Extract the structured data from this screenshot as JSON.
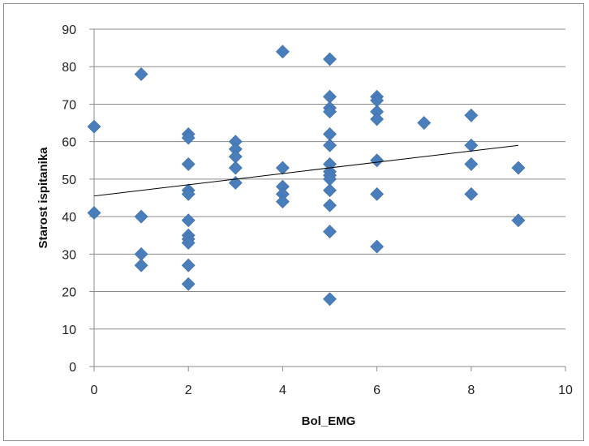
{
  "chart_data": {
    "type": "scatter",
    "title": "",
    "xlabel": "Bol_EMG",
    "ylabel": "Starost ispitanika",
    "xlim": [
      0,
      10
    ],
    "ylim": [
      0,
      90
    ],
    "xticks": [
      0,
      2,
      4,
      6,
      8,
      10
    ],
    "yticks": [
      0,
      10,
      20,
      30,
      40,
      50,
      60,
      70,
      80,
      90
    ],
    "grid": "horizontal",
    "legend": "none",
    "marker": "diamond",
    "marker_color": "#4a7ebb",
    "trendline": {
      "type": "linear",
      "x": [
        0,
        9
      ],
      "y": [
        45.5,
        59
      ]
    },
    "points": [
      {
        "x": 0,
        "y": 64
      },
      {
        "x": 0,
        "y": 41
      },
      {
        "x": 1,
        "y": 78
      },
      {
        "x": 1,
        "y": 40
      },
      {
        "x": 1,
        "y": 30
      },
      {
        "x": 1,
        "y": 27
      },
      {
        "x": 2,
        "y": 62
      },
      {
        "x": 2,
        "y": 61
      },
      {
        "x": 2,
        "y": 54
      },
      {
        "x": 2,
        "y": 47
      },
      {
        "x": 2,
        "y": 46
      },
      {
        "x": 2,
        "y": 39
      },
      {
        "x": 2,
        "y": 35
      },
      {
        "x": 2,
        "y": 34
      },
      {
        "x": 2,
        "y": 33
      },
      {
        "x": 2,
        "y": 27
      },
      {
        "x": 2,
        "y": 22
      },
      {
        "x": 3,
        "y": 60
      },
      {
        "x": 3,
        "y": 58
      },
      {
        "x": 3,
        "y": 56
      },
      {
        "x": 3,
        "y": 53
      },
      {
        "x": 3,
        "y": 49
      },
      {
        "x": 4,
        "y": 84
      },
      {
        "x": 4,
        "y": 53
      },
      {
        "x": 4,
        "y": 48
      },
      {
        "x": 4,
        "y": 46
      },
      {
        "x": 4,
        "y": 44
      },
      {
        "x": 5,
        "y": 82
      },
      {
        "x": 5,
        "y": 72
      },
      {
        "x": 5,
        "y": 69
      },
      {
        "x": 5,
        "y": 68
      },
      {
        "x": 5,
        "y": 62
      },
      {
        "x": 5,
        "y": 59
      },
      {
        "x": 5,
        "y": 54
      },
      {
        "x": 5,
        "y": 52
      },
      {
        "x": 5,
        "y": 51
      },
      {
        "x": 5,
        "y": 50
      },
      {
        "x": 5,
        "y": 47
      },
      {
        "x": 5,
        "y": 43
      },
      {
        "x": 5,
        "y": 36
      },
      {
        "x": 5,
        "y": 18
      },
      {
        "x": 6,
        "y": 72
      },
      {
        "x": 6,
        "y": 71
      },
      {
        "x": 6,
        "y": 68
      },
      {
        "x": 6,
        "y": 66
      },
      {
        "x": 6,
        "y": 55
      },
      {
        "x": 6,
        "y": 46
      },
      {
        "x": 6,
        "y": 32
      },
      {
        "x": 7,
        "y": 65
      },
      {
        "x": 8,
        "y": 67
      },
      {
        "x": 8,
        "y": 59
      },
      {
        "x": 8,
        "y": 54
      },
      {
        "x": 8,
        "y": 46
      },
      {
        "x": 9,
        "y": 53
      },
      {
        "x": 9,
        "y": 39
      }
    ]
  }
}
